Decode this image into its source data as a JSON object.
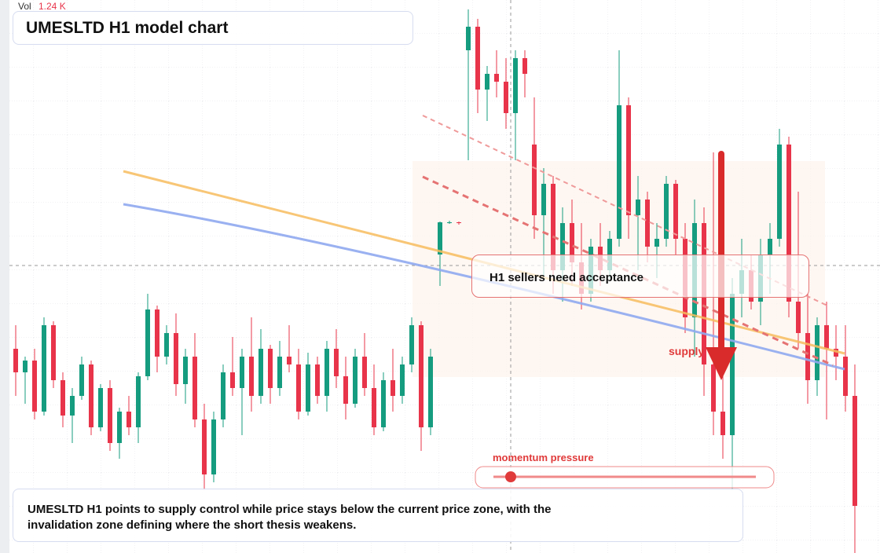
{
  "chart_data": {
    "type": "candlestick",
    "title": "UMESLTD H1 model chart",
    "volume_label": "Vol",
    "volume_value": "1.24 K",
    "annotation": "H1 sellers need acceptance",
    "supply_label": "supply",
    "momentum_label": "momentum pressure",
    "description": "UMESLTD H1 points to supply control while price stays below the current price zone, with the invalidation zone defining where the short thesis weakens.",
    "up_color": "#159c7f",
    "down_color": "#e8344a",
    "ylim": [
      0,
      704
    ],
    "candles": [
      [
        260,
        290,
        200,
        230
      ],
      [
        230,
        250,
        190,
        245
      ],
      [
        245,
        260,
        170,
        180
      ],
      [
        180,
        300,
        175,
        290
      ],
      [
        290,
        295,
        210,
        220
      ],
      [
        220,
        230,
        160,
        175
      ],
      [
        175,
        210,
        140,
        200
      ],
      [
        200,
        250,
        195,
        240
      ],
      [
        240,
        245,
        150,
        160
      ],
      [
        160,
        215,
        155,
        210
      ],
      [
        210,
        220,
        130,
        140
      ],
      [
        140,
        185,
        120,
        180
      ],
      [
        180,
        200,
        150,
        160
      ],
      [
        160,
        230,
        140,
        225
      ],
      [
        225,
        330,
        220,
        310
      ],
      [
        310,
        315,
        230,
        250
      ],
      [
        250,
        290,
        240,
        280
      ],
      [
        280,
        305,
        200,
        215
      ],
      [
        215,
        260,
        190,
        250
      ],
      [
        250,
        280,
        160,
        170
      ],
      [
        170,
        190,
        80,
        100
      ],
      [
        100,
        180,
        90,
        170
      ],
      [
        170,
        240,
        160,
        230
      ],
      [
        230,
        275,
        200,
        210
      ],
      [
        210,
        260,
        150,
        250
      ],
      [
        250,
        300,
        180,
        200
      ],
      [
        200,
        285,
        190,
        260
      ],
      [
        260,
        265,
        190,
        210
      ],
      [
        210,
        270,
        200,
        250
      ],
      [
        250,
        290,
        230,
        240
      ],
      [
        240,
        260,
        170,
        180
      ],
      [
        180,
        255,
        175,
        240
      ],
      [
        240,
        250,
        190,
        200
      ],
      [
        200,
        270,
        180,
        260
      ],
      [
        260,
        285,
        210,
        225
      ],
      [
        225,
        250,
        170,
        190
      ],
      [
        190,
        260,
        185,
        250
      ],
      [
        250,
        280,
        200,
        210
      ],
      [
        210,
        240,
        150,
        160
      ],
      [
        160,
        230,
        155,
        220
      ],
      [
        220,
        260,
        180,
        200
      ],
      [
        200,
        250,
        190,
        240
      ],
      [
        240,
        300,
        230,
        290
      ],
      [
        290,
        295,
        130,
        160
      ],
      [
        160,
        260,
        150,
        250
      ],
      [
        380,
        422,
        340,
        421
      ],
      [
        421,
        423,
        419,
        421
      ],
      [
        421,
        422,
        418,
        420
      ],
      [
        640,
        692,
        500,
        670
      ],
      [
        670,
        680,
        560,
        590
      ],
      [
        590,
        620,
        550,
        610
      ],
      [
        610,
        640,
        580,
        600
      ],
      [
        600,
        630,
        540,
        560
      ],
      [
        560,
        640,
        500,
        630
      ],
      [
        630,
        640,
        580,
        610
      ],
      [
        520,
        580,
        400,
        430
      ],
      [
        430,
        490,
        350,
        470
      ],
      [
        470,
        480,
        330,
        360
      ],
      [
        360,
        440,
        320,
        420
      ],
      [
        420,
        450,
        340,
        370
      ],
      [
        370,
        420,
        310,
        330
      ],
      [
        330,
        400,
        320,
        390
      ],
      [
        390,
        420,
        340,
        360
      ],
      [
        360,
        410,
        350,
        400
      ],
      [
        400,
        640,
        390,
        570
      ],
      [
        570,
        580,
        400,
        430
      ],
      [
        430,
        480,
        360,
        450
      ],
      [
        450,
        460,
        370,
        390
      ],
      [
        390,
        420,
        350,
        400
      ],
      [
        400,
        480,
        390,
        470
      ],
      [
        470,
        475,
        380,
        400
      ],
      [
        400,
        420,
        280,
        300
      ],
      [
        300,
        450,
        250,
        420
      ],
      [
        420,
        440,
        200,
        240
      ],
      [
        240,
        510,
        150,
        180
      ],
      [
        180,
        400,
        120,
        150
      ],
      [
        150,
        350,
        80,
        330
      ],
      [
        330,
        400,
        300,
        360
      ],
      [
        360,
        380,
        310,
        320
      ],
      [
        320,
        400,
        290,
        380
      ],
      [
        380,
        420,
        330,
        400
      ],
      [
        400,
        540,
        390,
        520
      ],
      [
        520,
        530,
        300,
        320
      ],
      [
        320,
        460,
        260,
        280
      ],
      [
        280,
        330,
        190,
        220
      ],
      [
        220,
        300,
        200,
        290
      ],
      [
        290,
        320,
        170,
        260
      ],
      [
        260,
        290,
        220,
        250
      ],
      [
        250,
        290,
        180,
        200
      ],
      [
        200,
        240,
        0,
        60
      ]
    ]
  }
}
